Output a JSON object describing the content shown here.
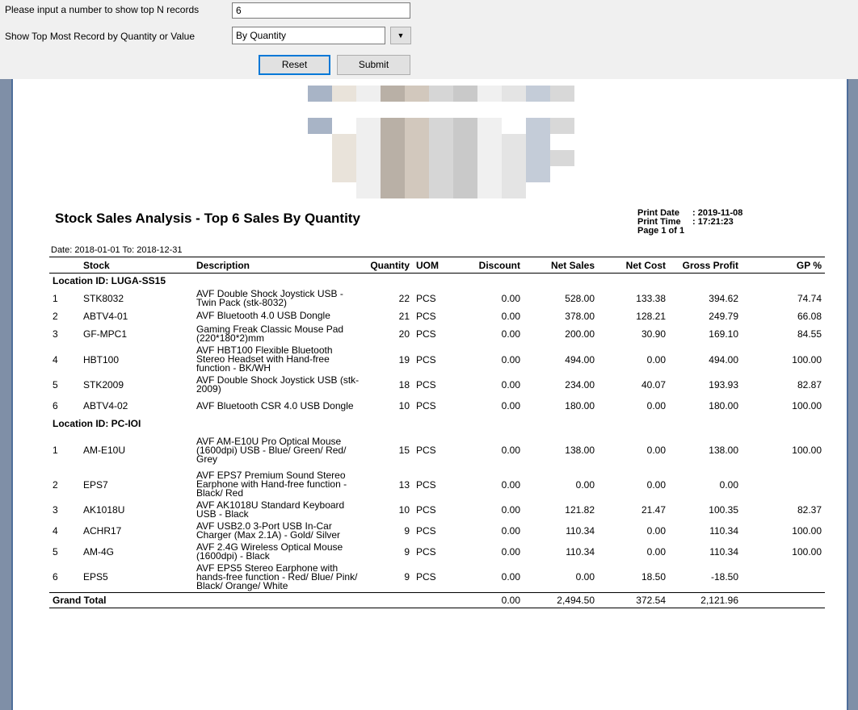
{
  "form": {
    "topn_label": "Please input a number to show top N records",
    "topn_value": "6",
    "mode_label": "Show Top Most Record by Quantity or Value",
    "mode_value": "By Quantity",
    "reset_label": "Reset",
    "submit_label": "Submit"
  },
  "report": {
    "title": "Stock Sales Analysis - Top 6 Sales By Quantity",
    "print_date_label": "Print Date",
    "print_date": ": 2019-11-08",
    "print_time_label": "Print Time",
    "print_time": ": 17:21:23",
    "page_info": "Page 1 of 1",
    "date_range": "Date: 2018-01-01   To: 2018-12-31",
    "columns": [
      "Stock",
      "Description",
      "Quantity",
      "UOM",
      "Discount",
      "Net Sales",
      "Net Cost",
      "Gross Profit",
      "GP %"
    ],
    "locations": [
      {
        "label": "Location ID: LUGA-SS15",
        "rows": [
          {
            "no": "1",
            "stock": "STK8032",
            "desc": "AVF Double Shock Joystick USB - Twin Pack (stk-8032)",
            "qty": "22",
            "uom": "PCS",
            "discount": "0.00",
            "net_sales": "528.00",
            "net_cost": "133.38",
            "gross_profit": "394.62",
            "gp": "74.74"
          },
          {
            "no": "2",
            "stock": "ABTV4-01",
            "desc": "AVF Bluetooth 4.0 USB Dongle",
            "qty": "21",
            "uom": "PCS",
            "discount": "0.00",
            "net_sales": "378.00",
            "net_cost": "128.21",
            "gross_profit": "249.79",
            "gp": "66.08"
          },
          {
            "no": "3",
            "stock": "GF-MPC1",
            "desc": "Gaming Freak Classic Mouse Pad (220*180*2)mm",
            "qty": "20",
            "uom": "PCS",
            "discount": "0.00",
            "net_sales": "200.00",
            "net_cost": "30.90",
            "gross_profit": "169.10",
            "gp": "84.55"
          },
          {
            "no": "4",
            "stock": "HBT100",
            "desc": "AVF HBT100 Flexible Bluetooth Stereo Headset with Hand-free function - BK/WH",
            "qty": "19",
            "uom": "PCS",
            "discount": "0.00",
            "net_sales": "494.00",
            "net_cost": "0.00",
            "gross_profit": "494.00",
            "gp": "100.00"
          },
          {
            "no": "5",
            "stock": "STK2009",
            "desc": "AVF Double Shock Joystick USB (stk-2009)",
            "qty": "18",
            "uom": "PCS",
            "discount": "0.00",
            "net_sales": "234.00",
            "net_cost": "40.07",
            "gross_profit": "193.93",
            "gp": "82.87"
          },
          {
            "no": "6",
            "stock": "ABTV4-02",
            "desc": "AVF Bluetooth CSR 4.0 USB Dongle",
            "qty": "10",
            "uom": "PCS",
            "discount": "0.00",
            "net_sales": "180.00",
            "net_cost": "0.00",
            "gross_profit": "180.00",
            "gp": "100.00"
          }
        ]
      },
      {
        "label": "Location ID: PC-IOI",
        "rows": [
          {
            "no": "1",
            "stock": "AM-E10U",
            "desc": "AVF AM-E10U Pro Optical Mouse (1600dpi) USB - Blue/ Green/ Red/ Grey",
            "qty": "15",
            "uom": "PCS",
            "discount": "0.00",
            "net_sales": "138.00",
            "net_cost": "0.00",
            "gross_profit": "138.00",
            "gp": "100.00"
          },
          {
            "no": "2",
            "stock": "EPS7",
            "desc": "AVF EPS7 Premium Sound Stereo Earphone with Hand-free function - Black/ Red",
            "qty": "13",
            "uom": "PCS",
            "discount": "0.00",
            "net_sales": "0.00",
            "net_cost": "0.00",
            "gross_profit": "0.00",
            "gp": ""
          },
          {
            "no": "3",
            "stock": "AK1018U",
            "desc": "AVF AK1018U Standard Keyboard USB - Black",
            "qty": "10",
            "uom": "PCS",
            "discount": "0.00",
            "net_sales": "121.82",
            "net_cost": "21.47",
            "gross_profit": "100.35",
            "gp": "82.37"
          },
          {
            "no": "4",
            "stock": "ACHR17",
            "desc": "AVF USB2.0 3-Port USB In-Car Charger (Max 2.1A) - Gold/ Silver",
            "qty": "9",
            "uom": "PCS",
            "discount": "0.00",
            "net_sales": "110.34",
            "net_cost": "0.00",
            "gross_profit": "110.34",
            "gp": "100.00"
          },
          {
            "no": "5",
            "stock": "AM-4G",
            "desc": "AVF 2.4G Wireless Optical Mouse (1600dpi) - Black",
            "qty": "9",
            "uom": "PCS",
            "discount": "0.00",
            "net_sales": "110.34",
            "net_cost": "0.00",
            "gross_profit": "110.34",
            "gp": "100.00"
          },
          {
            "no": "6",
            "stock": "EPS5",
            "desc": "AVF EPS5 Stereo Earphone with hands-free function - Red/ Blue/ Pink/ Black/ Orange/ White",
            "qty": "9",
            "uom": "PCS",
            "discount": "0.00",
            "net_sales": "0.00",
            "net_cost": "18.50",
            "gross_profit": "-18.50",
            "gp": ""
          }
        ]
      }
    ],
    "total": {
      "label": "Grand Total",
      "discount": "0.00",
      "net_sales": "2,494.50",
      "net_cost": "372.54",
      "gross_profit": "2,121.96"
    }
  }
}
